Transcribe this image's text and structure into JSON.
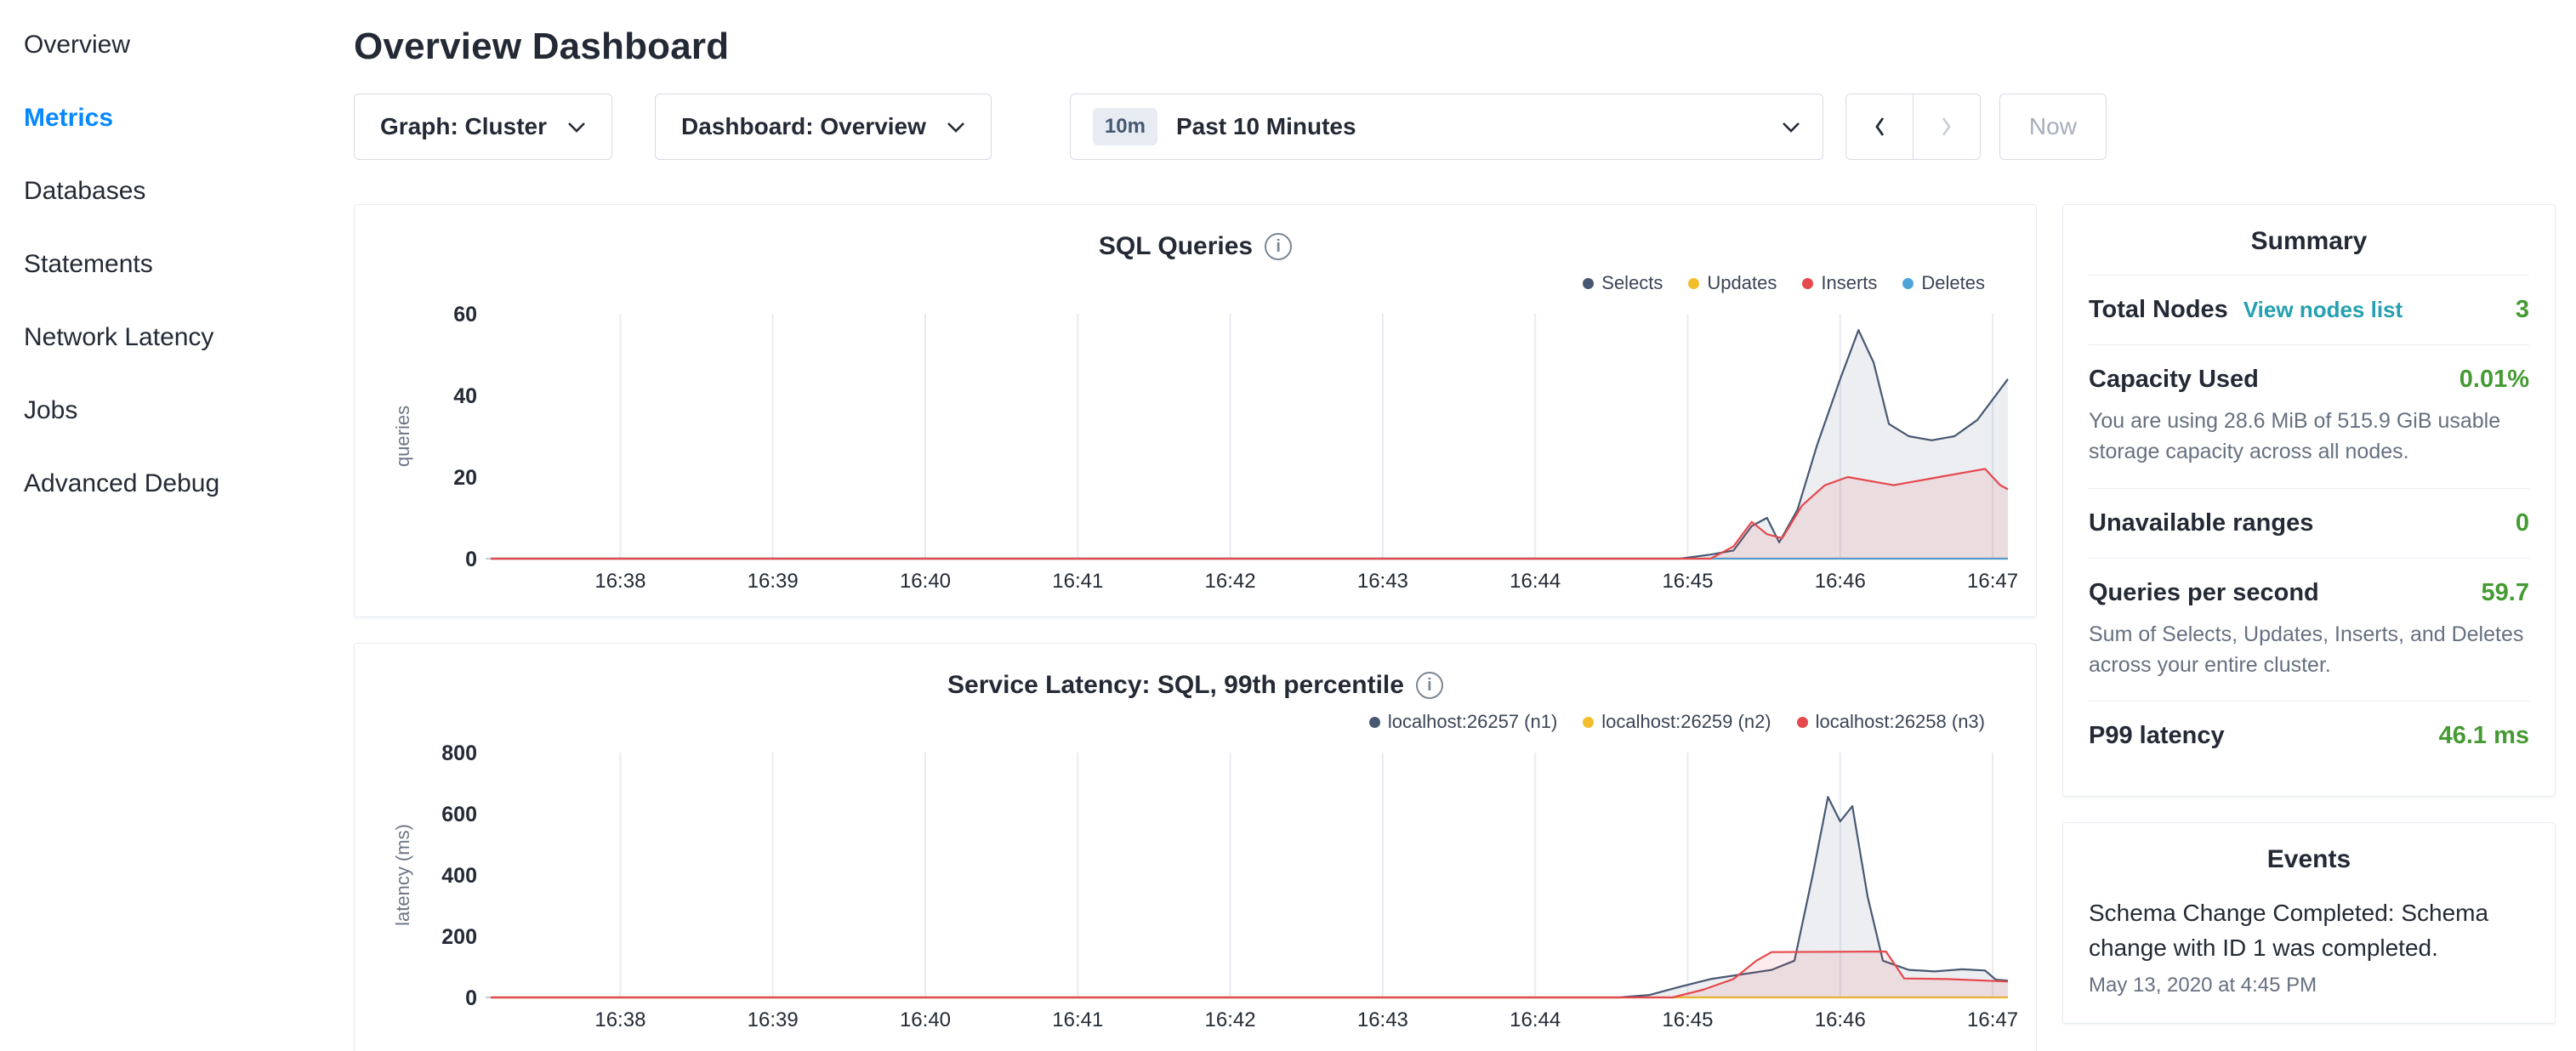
{
  "colors": {
    "accent_blue": "#0788ff",
    "value_green": "#459a33",
    "link_teal": "#24a0b0",
    "text_dark": "#242a35",
    "text_muted": "#667080",
    "border": "#e7ecf3",
    "control_border": "#d6dbe3"
  },
  "sidebar": {
    "items": [
      {
        "label": "Overview",
        "active": false
      },
      {
        "label": "Metrics",
        "active": true
      },
      {
        "label": "Databases",
        "active": false
      },
      {
        "label": "Statements",
        "active": false
      },
      {
        "label": "Network Latency",
        "active": false
      },
      {
        "label": "Jobs",
        "active": false
      },
      {
        "label": "Advanced Debug",
        "active": false
      }
    ]
  },
  "header": {
    "title": "Overview Dashboard"
  },
  "controls": {
    "graph_dropdown": "Graph: Cluster",
    "dashboard_dropdown": "Dashboard: Overview",
    "time_badge": "10m",
    "time_range": "Past 10 Minutes",
    "now_label": "Now"
  },
  "summary": {
    "title": "Summary",
    "rows": [
      {
        "label": "Total Nodes",
        "link": "View nodes list",
        "value": "3"
      },
      {
        "label": "Capacity Used",
        "value": "0.01%",
        "desc": "You are using 28.6 MiB of 515.9 GiB usable storage capacity across all nodes."
      },
      {
        "label": "Unavailable ranges",
        "value": "0"
      },
      {
        "label": "Queries per second",
        "value": "59.7",
        "desc": "Sum of Selects, Updates, Inserts, and Deletes across your entire cluster."
      },
      {
        "label": "P99 latency",
        "value": "46.1 ms"
      }
    ]
  },
  "events": {
    "title": "Events",
    "items": [
      {
        "text": "Schema Change Completed: Schema change with ID 1 was completed.",
        "time": "May 13, 2020 at 4:45 PM"
      }
    ]
  },
  "chart_data": [
    {
      "type": "line",
      "title": "SQL Queries",
      "xlabel": "",
      "ylabel": "queries",
      "grid": "vertical",
      "legend_position": "top-right",
      "x_ticks": [
        "16:38",
        "16:39",
        "16:40",
        "16:41",
        "16:42",
        "16:43",
        "16:44",
        "16:45",
        "16:46",
        "16:47"
      ],
      "xlim": [
        -0.85,
        9.1
      ],
      "ylim": [
        0,
        60
      ],
      "y_ticks": [
        0,
        20,
        40,
        60
      ],
      "series": [
        {
          "name": "Selects",
          "color": "#475872",
          "fill": "rgba(71,88,114,0.10)",
          "z": 2,
          "points": [
            [
              -0.85,
              0
            ],
            [
              6.95,
              0
            ],
            [
              7.15,
              1
            ],
            [
              7.3,
              2
            ],
            [
              7.42,
              8
            ],
            [
              7.52,
              10
            ],
            [
              7.6,
              4
            ],
            [
              7.72,
              12
            ],
            [
              7.85,
              28
            ],
            [
              8.0,
              44
            ],
            [
              8.12,
              56
            ],
            [
              8.22,
              48
            ],
            [
              8.32,
              33
            ],
            [
              8.45,
              30
            ],
            [
              8.6,
              29
            ],
            [
              8.75,
              30
            ],
            [
              8.9,
              34
            ],
            [
              9.0,
              39
            ],
            [
              9.1,
              44
            ]
          ]
        },
        {
          "name": "Updates",
          "color": "#f2be2c",
          "z": 0,
          "points": [
            [
              -0.85,
              0
            ],
            [
              9.1,
              0
            ]
          ]
        },
        {
          "name": "Inserts",
          "color": "#e5484d",
          "fill": "rgba(229,72,77,0.10)",
          "z": 3,
          "points": [
            [
              -0.85,
              0
            ],
            [
              6.95,
              0
            ],
            [
              7.15,
              0
            ],
            [
              7.3,
              3
            ],
            [
              7.42,
              9
            ],
            [
              7.52,
              6
            ],
            [
              7.62,
              5
            ],
            [
              7.75,
              13
            ],
            [
              7.9,
              18
            ],
            [
              8.05,
              20
            ],
            [
              8.2,
              19
            ],
            [
              8.35,
              18
            ],
            [
              8.5,
              19
            ],
            [
              8.65,
              20
            ],
            [
              8.8,
              21
            ],
            [
              8.95,
              22
            ],
            [
              9.05,
              18
            ],
            [
              9.1,
              17
            ]
          ]
        },
        {
          "name": "Deletes",
          "color": "#4ea4d9",
          "z": 1,
          "points": [
            [
              -0.85,
              0
            ],
            [
              9.1,
              0
            ]
          ]
        }
      ]
    },
    {
      "type": "line",
      "title": "Service Latency: SQL, 99th percentile",
      "xlabel": "",
      "ylabel": "latency (ms)",
      "grid": "vertical",
      "legend_position": "top-right",
      "x_ticks": [
        "16:38",
        "16:39",
        "16:40",
        "16:41",
        "16:42",
        "16:43",
        "16:44",
        "16:45",
        "16:46",
        "16:47"
      ],
      "xlim": [
        -0.85,
        9.1
      ],
      "ylim": [
        0,
        800
      ],
      "y_ticks": [
        0,
        200,
        400,
        600,
        800
      ],
      "series": [
        {
          "name": "localhost:26257 (n1)",
          "color": "#475872",
          "fill": "rgba(71,88,114,0.10)",
          "z": 1,
          "points": [
            [
              -0.85,
              0
            ],
            [
              6.55,
              0
            ],
            [
              6.75,
              8
            ],
            [
              6.95,
              35
            ],
            [
              7.15,
              60
            ],
            [
              7.35,
              75
            ],
            [
              7.55,
              90
            ],
            [
              7.7,
              120
            ],
            [
              7.82,
              400
            ],
            [
              7.92,
              655
            ],
            [
              8.0,
              575
            ],
            [
              8.08,
              625
            ],
            [
              8.18,
              330
            ],
            [
              8.28,
              120
            ],
            [
              8.45,
              90
            ],
            [
              8.62,
              85
            ],
            [
              8.8,
              92
            ],
            [
              8.95,
              88
            ],
            [
              9.02,
              58
            ],
            [
              9.1,
              55
            ]
          ]
        },
        {
          "name": "localhost:26259 (n2)",
          "color": "#f2be2c",
          "z": 0,
          "points": [
            [
              -0.85,
              0
            ],
            [
              9.1,
              0
            ]
          ]
        },
        {
          "name": "localhost:26258 (n3)",
          "color": "#e5484d",
          "fill": "rgba(229,72,77,0.10)",
          "z": 2,
          "points": [
            [
              -0.85,
              0
            ],
            [
              6.9,
              0
            ],
            [
              7.1,
              25
            ],
            [
              7.3,
              60
            ],
            [
              7.45,
              120
            ],
            [
              7.55,
              148
            ],
            [
              8.3,
              150
            ],
            [
              8.42,
              62
            ],
            [
              8.7,
              60
            ],
            [
              9.1,
              52
            ]
          ]
        }
      ]
    }
  ]
}
